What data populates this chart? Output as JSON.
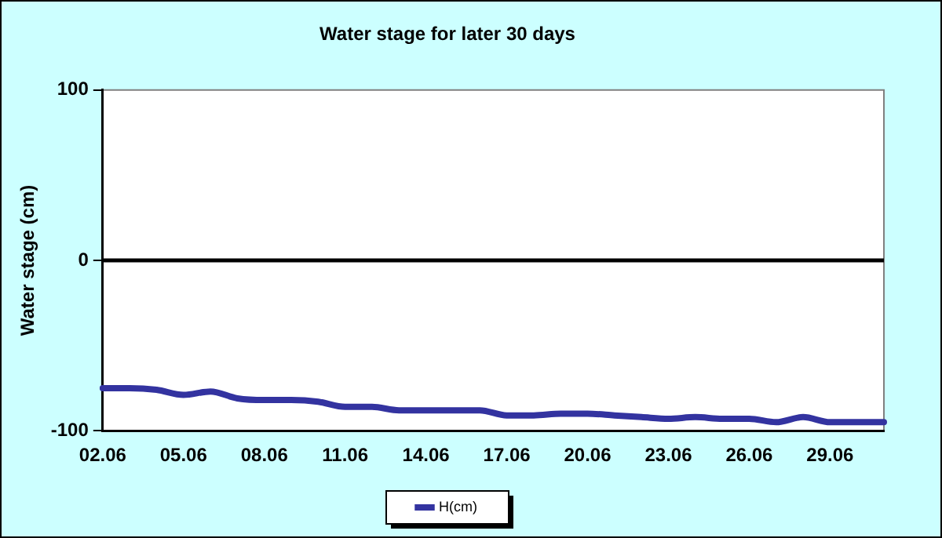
{
  "chart_data": {
    "type": "line",
    "title": "Water stage for later 30 days",
    "ylabel": "Water stage (cm)",
    "categories": [
      "02.06",
      null,
      null,
      "05.06",
      null,
      null,
      "08.06",
      null,
      null,
      "11.06",
      null,
      null,
      "14.06",
      null,
      null,
      "17.06",
      null,
      null,
      "20.06",
      null,
      null,
      "23.06",
      null,
      null,
      "26.06",
      null,
      null,
      "29.06",
      null,
      null
    ],
    "series": [
      {
        "name": "H(cm)",
        "color": "#3333a0",
        "values": [
          -75,
          -75,
          -76,
          -79,
          -77,
          -81,
          -82,
          -82,
          -83,
          -86,
          -86,
          -88,
          -88,
          -88,
          -88,
          -91,
          -91,
          -90,
          -90,
          -91,
          -92,
          -93,
          -92,
          -93,
          -93,
          -95,
          -92,
          -95,
          -95,
          -95
        ]
      }
    ],
    "ylim": [
      -100,
      100
    ],
    "yticks": [
      -100,
      0,
      100
    ],
    "grid": false,
    "legend": "bottom",
    "marker": "none",
    "line_style": "solid",
    "ref_lines": [
      {
        "axis": "y",
        "value": 0,
        "color": "#000000"
      }
    ]
  }
}
